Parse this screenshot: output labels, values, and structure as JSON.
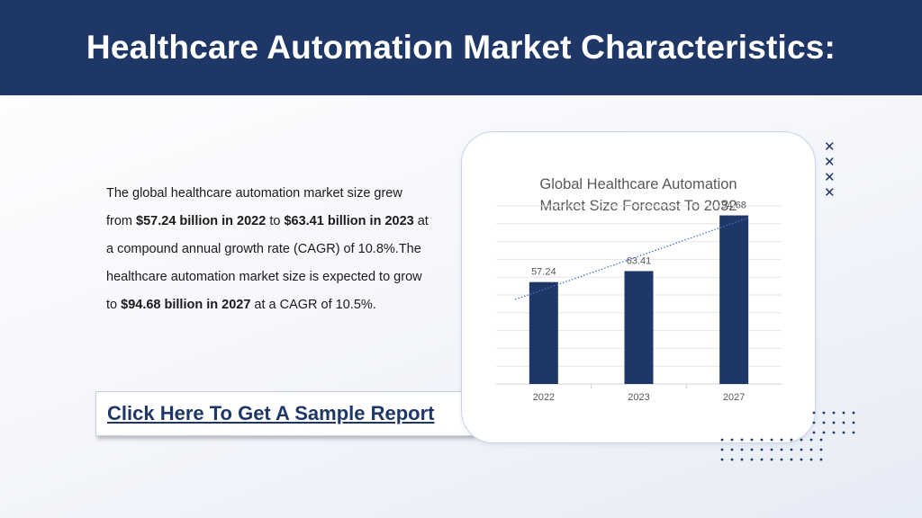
{
  "header": {
    "title": "Healthcare Automation Market Characteristics:"
  },
  "body": {
    "p1": "The global healthcare automation market size grew from ",
    "b1": "$57.24 billion in 2022",
    "p2": " to ",
    "b2": "$63.41 billion in 2023",
    "p3": " at a compound annual growth rate (CAGR) of 10.8%.The healthcare automation market size is expected to grow to ",
    "b3": "$94.68 billion in 2027",
    "p4": " at a CAGR of 10.5%."
  },
  "cta": {
    "label": "Click Here To Get A Sample Report"
  },
  "decor": {
    "x_mark": "✕",
    "accent": "#1e3766"
  },
  "chart_data": {
    "type": "bar",
    "title_line1": "Global Healthcare Automation",
    "title_line2": "Market Size Forecast To 2032",
    "categories": [
      "2022",
      "2023",
      "2027"
    ],
    "values": [
      57.24,
      63.41,
      94.68
    ],
    "data_labels": [
      "57.24",
      "63.41",
      "94.68"
    ],
    "ylim": [
      0,
      100
    ],
    "trendline": "linear-dotted",
    "grid": true,
    "legend": "none",
    "bar_color": "#1e3766",
    "trend_color": "#4472c4",
    "grid_color": "#e6e6e6"
  }
}
